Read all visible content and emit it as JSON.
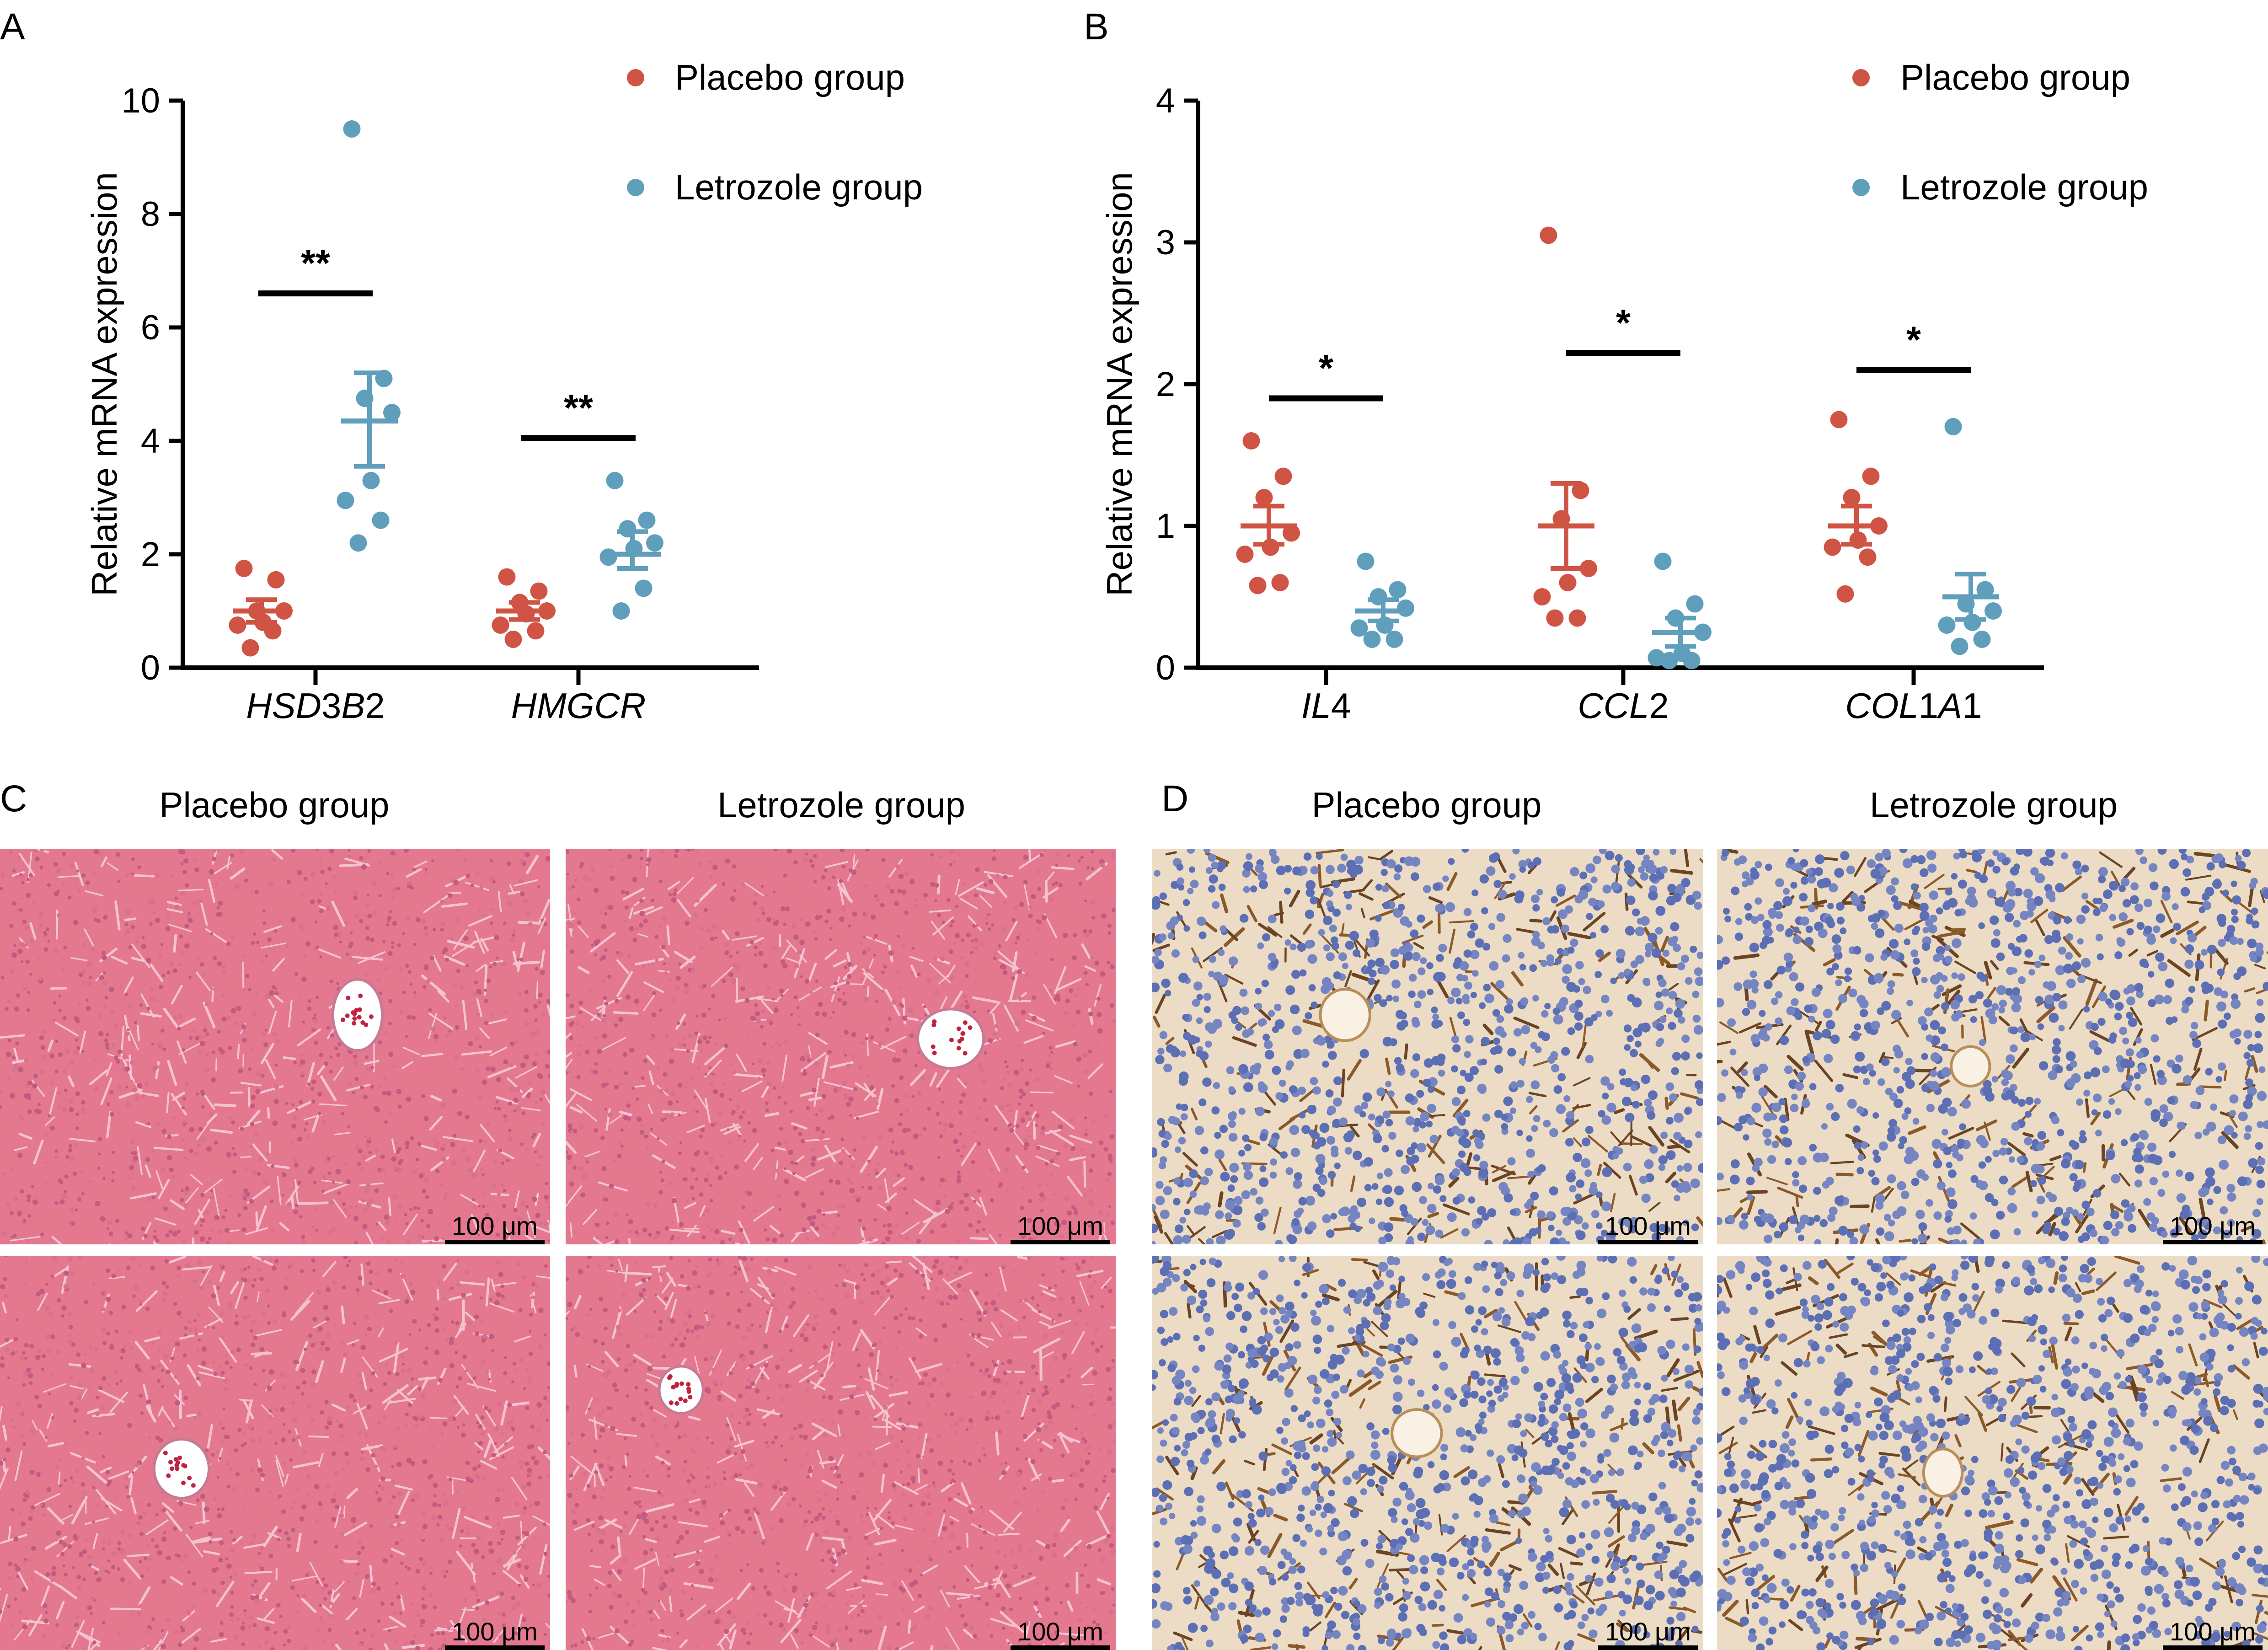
{
  "figure": {
    "panel_letters": [
      "A",
      "B",
      "C",
      "D"
    ],
    "colors": {
      "placebo": "#cf5444",
      "letrozole": "#5f9fbc"
    }
  },
  "chart_data": [
    {
      "type": "scatter",
      "panel": "A",
      "ylabel": "Relative mRNA expression",
      "xlabel": "",
      "ylim": [
        0,
        10
      ],
      "yticks": [
        "0",
        "2",
        "4",
        "6",
        "8",
        "10"
      ],
      "categories": [
        "HSD3B2",
        "HMGCR"
      ],
      "legend": {
        "placement": "top-right",
        "entries": [
          "Placebo group",
          "Letrozole group"
        ]
      },
      "series": [
        {
          "name": "Placebo group",
          "color": "#cf5444",
          "points": [
            [
              1.75,
              1.55,
              1.0,
              1.0,
              0.8,
              0.75,
              0.65,
              0.35
            ],
            [
              1.6,
              1.35,
              1.15,
              1.0,
              0.95,
              0.75,
              0.65,
              0.5
            ]
          ],
          "mean": [
            1.0,
            1.0
          ],
          "sem_low": [
            0.8,
            0.85
          ],
          "sem_high": [
            1.2,
            1.15
          ]
        },
        {
          "name": "Letrozole group",
          "color": "#5f9fbc",
          "points": [
            [
              9.5,
              5.1,
              4.75,
              4.5,
              3.3,
              2.95,
              2.6,
              2.2
            ],
            [
              3.3,
              2.6,
              2.45,
              2.2,
              2.1,
              1.95,
              1.4,
              1.0
            ]
          ],
          "mean": [
            4.35,
            2.0
          ],
          "sem_low": [
            3.55,
            1.75
          ],
          "sem_high": [
            5.2,
            2.4
          ]
        }
      ],
      "significance": [
        {
          "label": "**",
          "y": 6.6
        },
        {
          "label": "**",
          "y": 4.05
        }
      ]
    },
    {
      "type": "scatter",
      "panel": "B",
      "ylabel": "Relative mRNA expression",
      "xlabel": "",
      "ylim": [
        0,
        4
      ],
      "yticks": [
        "0",
        "1",
        "2",
        "3",
        "4"
      ],
      "categories": [
        "IL4",
        "CCL2",
        "COL1A1"
      ],
      "legend": {
        "placement": "top-right",
        "entries": [
          "Placebo group",
          "Letrozole group"
        ]
      },
      "series": [
        {
          "name": "Placebo group",
          "color": "#cf5444",
          "points": [
            [
              1.6,
              1.35,
              1.2,
              0.95,
              0.85,
              0.8,
              0.6,
              0.58
            ],
            [
              3.05,
              1.25,
              1.05,
              0.7,
              0.6,
              0.5,
              0.35,
              0.35
            ],
            [
              1.75,
              1.35,
              1.2,
              1.0,
              0.9,
              0.85,
              0.78,
              0.52
            ]
          ],
          "mean": [
            1.0,
            1.0,
            1.0
          ],
          "sem_low": [
            0.87,
            0.7,
            0.87
          ],
          "sem_high": [
            1.14,
            1.3,
            1.14
          ]
        },
        {
          "name": "Letrozole group",
          "color": "#5f9fbc",
          "points": [
            [
              0.75,
              0.55,
              0.5,
              0.42,
              0.3,
              0.28,
              0.2,
              0.2
            ],
            [
              0.75,
              0.45,
              0.35,
              0.25,
              0.1,
              0.07,
              0.05,
              0.05
            ],
            [
              1.7,
              0.55,
              0.45,
              0.4,
              0.32,
              0.3,
              0.2,
              0.15
            ]
          ],
          "mean": [
            0.4,
            0.25,
            0.5
          ],
          "sem_low": [
            0.33,
            0.15,
            0.34
          ],
          "sem_high": [
            0.48,
            0.35,
            0.66
          ]
        }
      ],
      "significance": [
        {
          "label": "*",
          "y": 1.9
        },
        {
          "label": "*",
          "y": 2.22
        },
        {
          "label": "*",
          "y": 2.1
        }
      ]
    }
  ],
  "panel_c": {
    "titles": [
      "Placebo group",
      "Letrozole group"
    ],
    "scale_bar": "100 μm"
  },
  "panel_d": {
    "titles": [
      "Placebo group",
      "Letrozole group"
    ],
    "scale_bar": "100 μm"
  }
}
